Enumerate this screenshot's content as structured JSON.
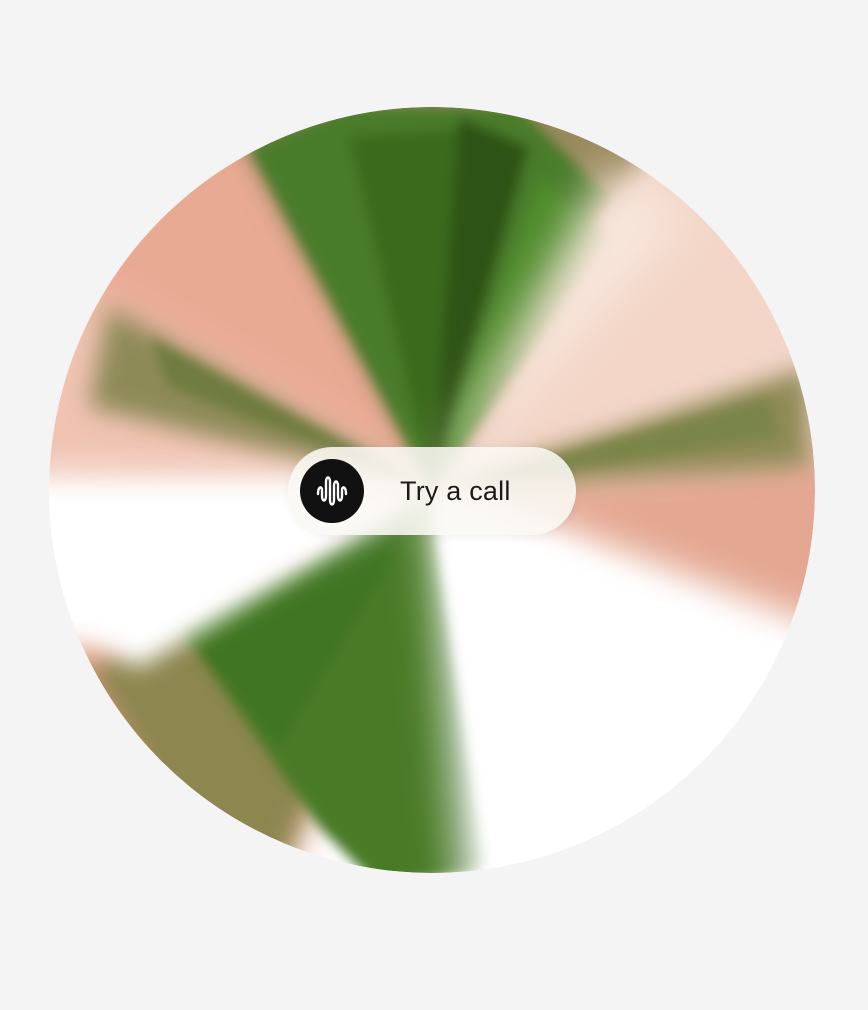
{
  "call_button": {
    "label": "Try a call",
    "icon": "waveform-icon"
  },
  "orb": {
    "colors": {
      "green": "#3f7a22",
      "dark_green": "#2a4a14",
      "olive": "#8a8a52",
      "salmon": "#e39a84",
      "peach": "#f0c8b6",
      "white": "#ffffff"
    }
  }
}
